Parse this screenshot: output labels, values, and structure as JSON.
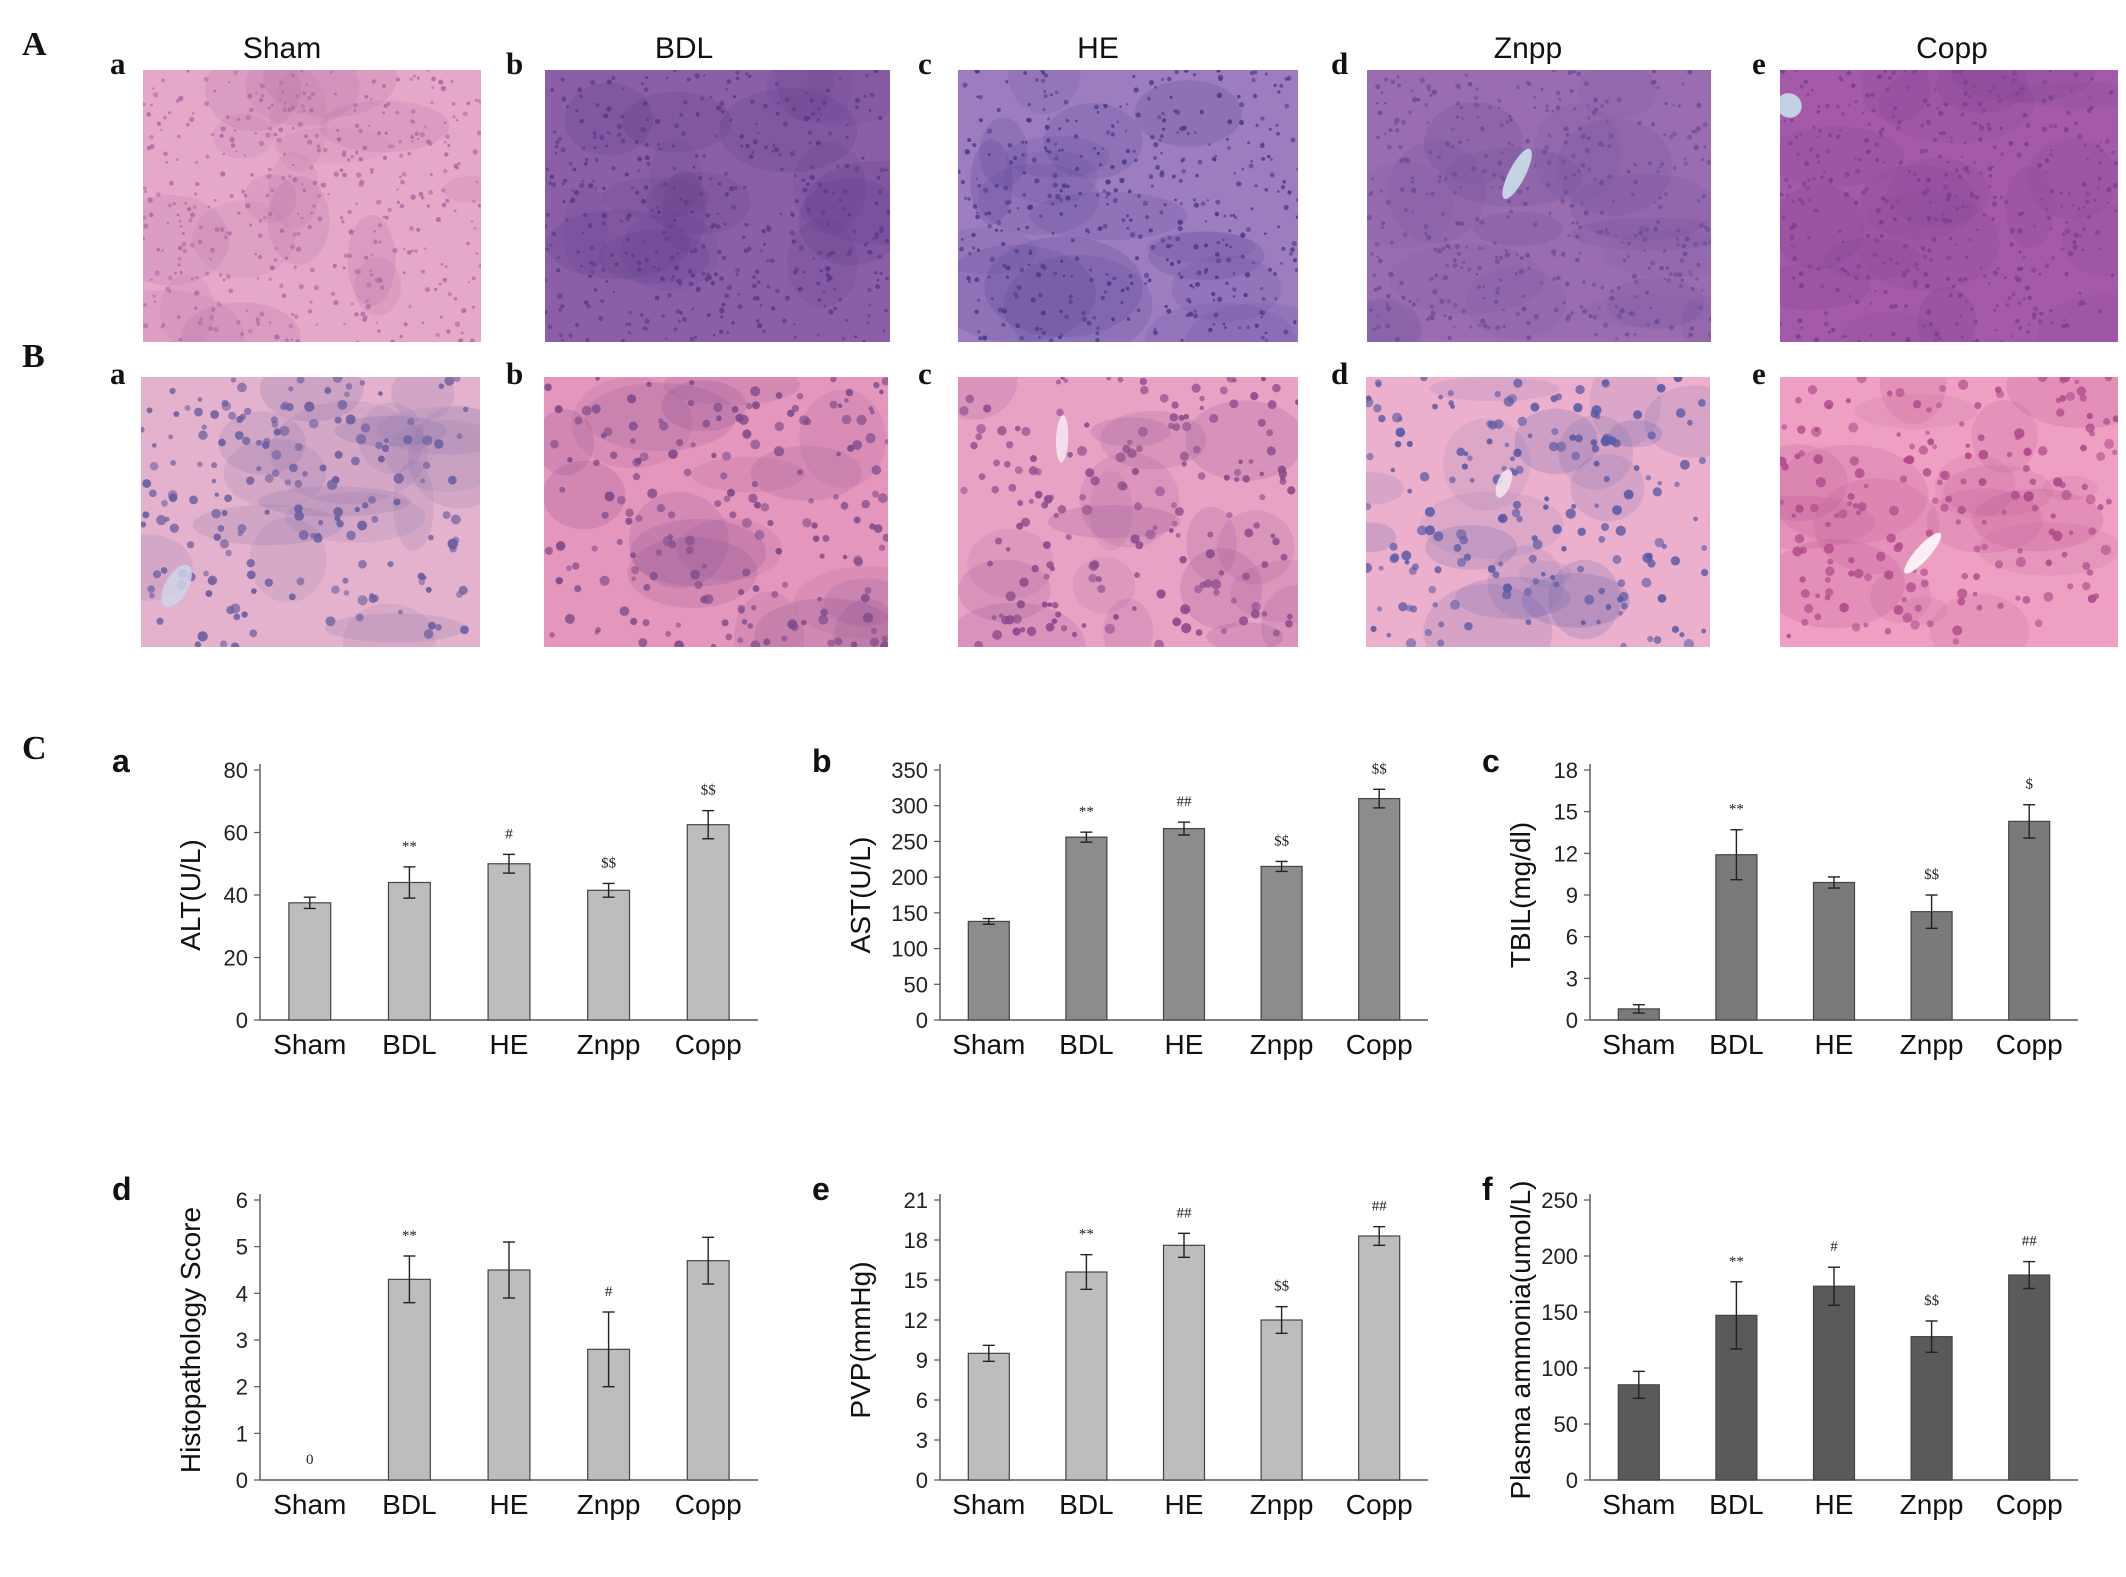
{
  "panels": {
    "A": "A",
    "B": "B",
    "C": "C"
  },
  "columns": [
    {
      "letter": "a",
      "title": "Sham"
    },
    {
      "letter": "b",
      "title": "BDL"
    },
    {
      "letter": "c",
      "title": "HE"
    },
    {
      "letter": "d",
      "title": "Znpp"
    },
    {
      "letter": "e",
      "title": "Copp"
    }
  ],
  "micrographs": {
    "liver_row": [
      {
        "base": "#e6a8c8",
        "cell": "#b06aa6",
        "vein": "#cfd8ea"
      },
      {
        "base": "#8a5fa8",
        "cell": "#5a3a86",
        "vein": "#b8e0ea"
      },
      {
        "base": "#9d7cc0",
        "cell": "#4a3a8a",
        "vein": "#f0f0f7"
      },
      {
        "base": "#9a6db0",
        "cell": "#6b4c9a",
        "vein": "#cfe6ee"
      },
      {
        "base": "#a45aa8",
        "cell": "#7a3f8f",
        "vein": "#c9e6ee"
      }
    ],
    "brain_row": [
      {
        "base": "#e4b2cc",
        "cell": "#6a5ea0",
        "vein": "#cfd4ea"
      },
      {
        "base": "#e596bc",
        "cell": "#7d4a8a",
        "vein": "#f4e6ee"
      },
      {
        "base": "#e8a2c4",
        "cell": "#8a4a8c",
        "vein": "#f4eaf2"
      },
      {
        "base": "#ecb0cc",
        "cell": "#5a5aa6",
        "vein": "#f4e6ee"
      },
      {
        "base": "#ee9fc2",
        "cell": "#b04a8a",
        "vein": "#ffffff"
      }
    ]
  },
  "chart_data": [
    {
      "panel": "a",
      "type": "bar",
      "color": "#bdbdbd",
      "ylabel": "ALT(U/L)",
      "categories": [
        "Sham",
        "BDL",
        "HE",
        "Znpp",
        "Copp"
      ],
      "values": [
        37.5,
        44,
        50,
        41.5,
        62.5
      ],
      "errors": [
        1.8,
        5,
        3,
        2.2,
        4.5
      ],
      "annotations": [
        "",
        "**",
        "#",
        "$$",
        "$$"
      ],
      "ylim": [
        0,
        80
      ],
      "yticks": [
        0,
        20,
        40,
        60,
        80
      ],
      "ytick_labels": [
        "0",
        "20",
        "40",
        "60",
        "80"
      ]
    },
    {
      "panel": "b",
      "type": "bar",
      "color": "#8c8c8c",
      "ylabel": "AST(U/L)",
      "categories": [
        "Sham",
        "BDL",
        "HE",
        "Znpp",
        "Copp"
      ],
      "values": [
        138,
        256,
        268,
        215,
        310
      ],
      "errors": [
        4,
        7,
        9,
        7,
        13
      ],
      "annotations": [
        "",
        "**",
        "##",
        "$$",
        "$$"
      ],
      "ylim": [
        0,
        350
      ],
      "yticks": [
        0,
        50,
        100,
        150,
        200,
        250,
        300,
        350
      ],
      "ytick_labels": [
        "0",
        "50",
        "100",
        "150",
        "200",
        "250",
        "300",
        "350"
      ]
    },
    {
      "panel": "c",
      "type": "bar",
      "color": "#7a7a7a",
      "ylabel": "TBIL(mg/dl)",
      "categories": [
        "Sham",
        "BDL",
        "HE",
        "Znpp",
        "Copp"
      ],
      "values": [
        0.8,
        11.9,
        9.9,
        7.8,
        14.3
      ],
      "errors": [
        0.3,
        1.8,
        0.4,
        1.2,
        1.2
      ],
      "annotations": [
        "",
        "**",
        "",
        "$$",
        "$"
      ],
      "ylim": [
        0,
        18
      ],
      "yticks": [
        0,
        3,
        6,
        9,
        12,
        15,
        18
      ],
      "ytick_labels": [
        "0",
        "3",
        "6",
        "9",
        "12",
        "15",
        "18"
      ]
    },
    {
      "panel": "d",
      "type": "bar",
      "color": "#bdbdbd",
      "ylabel": "Histopathology Score",
      "categories": [
        "Sham",
        "BDL",
        "HE",
        "Znpp",
        "Copp"
      ],
      "values": [
        0,
        4.3,
        4.5,
        2.8,
        4.7
      ],
      "errors": [
        0,
        0.5,
        0.6,
        0.8,
        0.5
      ],
      "annotations": [
        "0",
        "**",
        "",
        "#",
        ""
      ],
      "ylim": [
        0,
        6
      ],
      "yticks": [
        0,
        1,
        2,
        3,
        4,
        5,
        6
      ],
      "ytick_labels": [
        "0",
        "1",
        "2",
        "3",
        "4",
        "5",
        "6"
      ]
    },
    {
      "panel": "e",
      "type": "bar",
      "color": "#bdbdbd",
      "ylabel": "PVP(mmHg)",
      "categories": [
        "Sham",
        "BDL",
        "HE",
        "Znpp",
        "Copp"
      ],
      "values": [
        9.5,
        15.6,
        17.6,
        12,
        18.3
      ],
      "errors": [
        0.6,
        1.3,
        0.9,
        1,
        0.7
      ],
      "annotations": [
        "",
        "**",
        "##",
        "$$",
        "##"
      ],
      "ylim": [
        0,
        21
      ],
      "yticks": [
        0,
        3,
        6,
        9,
        12,
        15,
        18,
        21
      ],
      "ytick_labels": [
        "0",
        "3",
        "6",
        "9",
        "12",
        "15",
        "18",
        "21"
      ]
    },
    {
      "panel": "f",
      "type": "bar",
      "color": "#5a5a5a",
      "ylabel": "Plasma ammonia(umol/L)",
      "categories": [
        "Sham",
        "BDL",
        "HE",
        "Znpp",
        "Copp"
      ],
      "values": [
        85,
        147,
        173,
        128,
        183
      ],
      "errors": [
        12,
        30,
        17,
        14,
        12
      ],
      "annotations": [
        "",
        "**",
        "#",
        "$$",
        "##"
      ],
      "ylim": [
        0,
        250
      ],
      "yticks": [
        0,
        50,
        100,
        150,
        200,
        250
      ],
      "ytick_labels": [
        "0",
        "50",
        "100",
        "150",
        "200",
        "250"
      ]
    }
  ]
}
